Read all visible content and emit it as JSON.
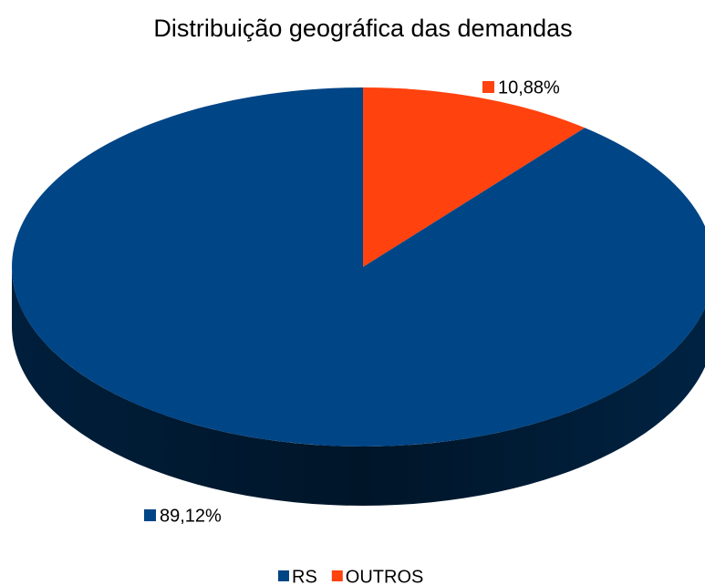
{
  "chart_data": {
    "type": "pie",
    "title": "Distribuição geográfica das demandas",
    "categories": [
      "RS",
      "OUTROS"
    ],
    "values": [
      89.12,
      10.88
    ],
    "value_labels": [
      "89,12%",
      "10,88%"
    ],
    "colors": [
      "#004586",
      "#ff420e"
    ],
    "legend": "bottom"
  }
}
